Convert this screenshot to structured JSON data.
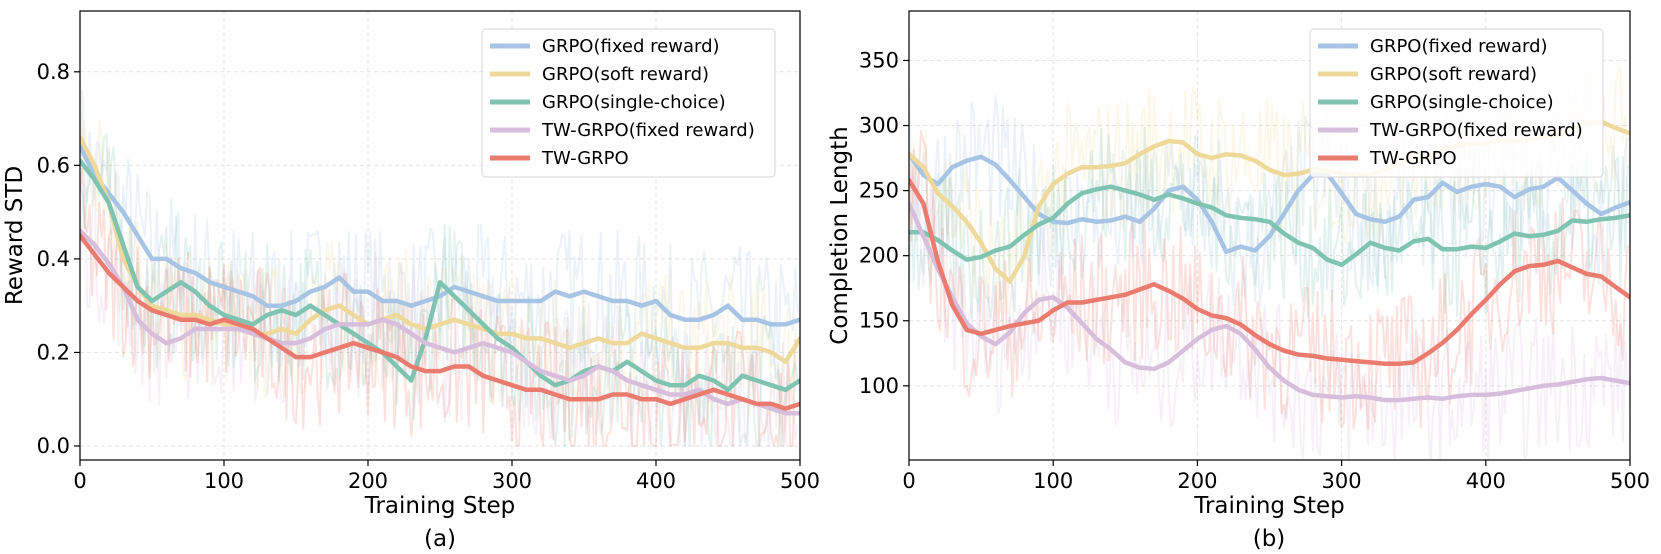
{
  "chart_data": [
    {
      "type": "line",
      "caption": "(a)",
      "xlabel": "Training Step",
      "ylabel": "Reward STD",
      "xlim": [
        0,
        500
      ],
      "ylim": [
        -0.03,
        0.93
      ],
      "xticks": [
        0,
        100,
        200,
        300,
        400,
        500
      ],
      "yticks": [
        0.0,
        0.2,
        0.4,
        0.6,
        0.8
      ],
      "grid": true,
      "legend_position": "top-right",
      "series": [
        {
          "name": "GRPO(fixed reward)",
          "color": "#A7C4E5",
          "x": [
            0,
            10,
            20,
            30,
            40,
            50,
            60,
            70,
            80,
            90,
            100,
            110,
            120,
            130,
            140,
            150,
            160,
            170,
            180,
            190,
            200,
            210,
            220,
            230,
            240,
            250,
            260,
            270,
            280,
            290,
            300,
            310,
            320,
            330,
            340,
            350,
            360,
            370,
            380,
            390,
            400,
            410,
            420,
            430,
            440,
            450,
            460,
            470,
            480,
            490,
            500
          ],
          "y": [
            0.64,
            0.58,
            0.54,
            0.5,
            0.45,
            0.4,
            0.4,
            0.38,
            0.37,
            0.35,
            0.34,
            0.33,
            0.32,
            0.3,
            0.3,
            0.31,
            0.33,
            0.34,
            0.36,
            0.33,
            0.33,
            0.31,
            0.31,
            0.3,
            0.31,
            0.32,
            0.34,
            0.33,
            0.32,
            0.31,
            0.31,
            0.31,
            0.31,
            0.33,
            0.32,
            0.33,
            0.32,
            0.31,
            0.31,
            0.3,
            0.31,
            0.28,
            0.27,
            0.27,
            0.28,
            0.3,
            0.27,
            0.27,
            0.26,
            0.26,
            0.27
          ]
        },
        {
          "name": "GRPO(soft reward)",
          "color": "#EFD99A",
          "x": [
            0,
            10,
            20,
            30,
            40,
            50,
            60,
            70,
            80,
            90,
            100,
            110,
            120,
            130,
            140,
            150,
            160,
            170,
            180,
            190,
            200,
            210,
            220,
            230,
            240,
            250,
            260,
            270,
            280,
            290,
            300,
            310,
            320,
            330,
            340,
            350,
            360,
            370,
            380,
            390,
            400,
            410,
            420,
            430,
            440,
            450,
            460,
            470,
            480,
            490,
            500
          ],
          "y": [
            0.66,
            0.6,
            0.52,
            0.4,
            0.34,
            0.3,
            0.29,
            0.28,
            0.28,
            0.27,
            0.26,
            0.26,
            0.24,
            0.24,
            0.25,
            0.24,
            0.27,
            0.29,
            0.3,
            0.28,
            0.26,
            0.27,
            0.28,
            0.26,
            0.25,
            0.26,
            0.27,
            0.26,
            0.25,
            0.24,
            0.24,
            0.23,
            0.23,
            0.22,
            0.21,
            0.22,
            0.23,
            0.22,
            0.22,
            0.24,
            0.23,
            0.22,
            0.21,
            0.21,
            0.22,
            0.22,
            0.21,
            0.21,
            0.2,
            0.18,
            0.23
          ]
        },
        {
          "name": "GRPO(single-choice)",
          "color": "#7FC3B1",
          "x": [
            0,
            10,
            20,
            30,
            40,
            50,
            60,
            70,
            80,
            90,
            100,
            110,
            120,
            130,
            140,
            150,
            160,
            170,
            180,
            190,
            200,
            210,
            220,
            230,
            240,
            250,
            260,
            270,
            280,
            290,
            300,
            310,
            320,
            330,
            340,
            350,
            360,
            370,
            380,
            390,
            400,
            410,
            420,
            430,
            440,
            450,
            460,
            470,
            480,
            490,
            500
          ],
          "y": [
            0.61,
            0.57,
            0.52,
            0.43,
            0.34,
            0.31,
            0.33,
            0.35,
            0.33,
            0.3,
            0.28,
            0.27,
            0.26,
            0.28,
            0.29,
            0.28,
            0.3,
            0.28,
            0.26,
            0.24,
            0.22,
            0.2,
            0.17,
            0.14,
            0.23,
            0.35,
            0.32,
            0.29,
            0.26,
            0.23,
            0.21,
            0.18,
            0.15,
            0.13,
            0.14,
            0.16,
            0.17,
            0.16,
            0.18,
            0.16,
            0.14,
            0.13,
            0.13,
            0.15,
            0.14,
            0.12,
            0.15,
            0.14,
            0.13,
            0.12,
            0.14
          ]
        },
        {
          "name": "TW-GRPO(fixed reward)",
          "color": "#D8BEDD",
          "x": [
            0,
            10,
            20,
            30,
            40,
            50,
            60,
            70,
            80,
            90,
            100,
            110,
            120,
            130,
            140,
            150,
            160,
            170,
            180,
            190,
            200,
            210,
            220,
            230,
            240,
            250,
            260,
            270,
            280,
            290,
            300,
            310,
            320,
            330,
            340,
            350,
            360,
            370,
            380,
            390,
            400,
            410,
            420,
            430,
            440,
            450,
            460,
            470,
            480,
            490,
            500
          ],
          "y": [
            0.46,
            0.43,
            0.39,
            0.34,
            0.27,
            0.24,
            0.22,
            0.23,
            0.25,
            0.25,
            0.25,
            0.25,
            0.24,
            0.23,
            0.22,
            0.22,
            0.23,
            0.25,
            0.26,
            0.26,
            0.26,
            0.27,
            0.26,
            0.24,
            0.22,
            0.21,
            0.2,
            0.21,
            0.22,
            0.21,
            0.2,
            0.18,
            0.16,
            0.15,
            0.14,
            0.15,
            0.17,
            0.16,
            0.14,
            0.13,
            0.12,
            0.11,
            0.11,
            0.12,
            0.1,
            0.09,
            0.1,
            0.09,
            0.08,
            0.07,
            0.07
          ]
        },
        {
          "name": "TW-GRPO",
          "color": "#EB7B6F",
          "x": [
            0,
            10,
            20,
            30,
            40,
            50,
            60,
            70,
            80,
            90,
            100,
            110,
            120,
            130,
            140,
            150,
            160,
            170,
            180,
            190,
            200,
            210,
            220,
            230,
            240,
            250,
            260,
            270,
            280,
            290,
            300,
            310,
            320,
            330,
            340,
            350,
            360,
            370,
            380,
            390,
            400,
            410,
            420,
            430,
            440,
            450,
            460,
            470,
            480,
            490,
            500
          ],
          "y": [
            0.45,
            0.41,
            0.37,
            0.34,
            0.31,
            0.29,
            0.28,
            0.27,
            0.27,
            0.26,
            0.27,
            0.26,
            0.25,
            0.23,
            0.21,
            0.19,
            0.19,
            0.2,
            0.21,
            0.22,
            0.21,
            0.2,
            0.19,
            0.17,
            0.16,
            0.16,
            0.17,
            0.17,
            0.15,
            0.14,
            0.13,
            0.12,
            0.12,
            0.11,
            0.1,
            0.1,
            0.1,
            0.11,
            0.11,
            0.1,
            0.1,
            0.09,
            0.1,
            0.11,
            0.12,
            0.11,
            0.1,
            0.09,
            0.09,
            0.08,
            0.09
          ]
        }
      ]
    },
    {
      "type": "line",
      "caption": "(b)",
      "xlabel": "Training Step",
      "ylabel": "Completion Length",
      "xlim": [
        0,
        500
      ],
      "ylim": [
        43,
        388
      ],
      "xticks": [
        0,
        100,
        200,
        300,
        400,
        500
      ],
      "yticks": [
        100,
        150,
        200,
        250,
        300,
        350
      ],
      "grid": true,
      "legend_position": "top-right",
      "series": [
        {
          "name": "GRPO(fixed reward)",
          "color": "#A7C4E5",
          "x": [
            0,
            10,
            20,
            30,
            40,
            50,
            60,
            70,
            80,
            90,
            100,
            110,
            120,
            130,
            140,
            150,
            160,
            170,
            180,
            190,
            200,
            210,
            220,
            230,
            240,
            250,
            260,
            270,
            280,
            290,
            300,
            310,
            320,
            330,
            340,
            350,
            360,
            370,
            380,
            390,
            400,
            410,
            420,
            430,
            440,
            450,
            460,
            470,
            480,
            490,
            500
          ],
          "y": [
            278,
            262,
            255,
            268,
            273,
            276,
            270,
            258,
            245,
            232,
            226,
            225,
            228,
            226,
            227,
            230,
            226,
            236,
            250,
            253,
            243,
            226,
            203,
            207,
            204,
            215,
            232,
            250,
            262,
            263,
            248,
            232,
            228,
            226,
            230,
            243,
            245,
            256,
            249,
            253,
            255,
            253,
            245,
            251,
            253,
            260,
            250,
            240,
            232,
            237,
            241
          ]
        },
        {
          "name": "GRPO(soft reward)",
          "color": "#EFD99A",
          "x": [
            0,
            10,
            20,
            30,
            40,
            50,
            60,
            70,
            80,
            90,
            100,
            110,
            120,
            130,
            140,
            150,
            160,
            170,
            180,
            190,
            200,
            210,
            220,
            230,
            240,
            250,
            260,
            270,
            280,
            290,
            300,
            310,
            320,
            330,
            340,
            350,
            360,
            370,
            380,
            390,
            400,
            410,
            420,
            430,
            440,
            450,
            460,
            470,
            480,
            490,
            500
          ],
          "y": [
            278,
            268,
            248,
            238,
            226,
            210,
            190,
            180,
            200,
            238,
            255,
            263,
            268,
            268,
            269,
            271,
            278,
            284,
            288,
            287,
            278,
            275,
            278,
            277,
            273,
            266,
            262,
            263,
            266,
            265,
            263,
            262,
            262,
            266,
            271,
            275,
            276,
            283,
            284,
            286,
            286,
            289,
            288,
            289,
            291,
            293,
            298,
            302,
            303,
            298,
            294
          ]
        },
        {
          "name": "GRPO(single-choice)",
          "color": "#7FC3B1",
          "x": [
            0,
            10,
            20,
            30,
            40,
            50,
            60,
            70,
            80,
            90,
            100,
            110,
            120,
            130,
            140,
            150,
            160,
            170,
            180,
            190,
            200,
            210,
            220,
            230,
            240,
            250,
            260,
            270,
            280,
            290,
            300,
            310,
            320,
            330,
            340,
            350,
            360,
            370,
            380,
            390,
            400,
            410,
            420,
            430,
            440,
            450,
            460,
            470,
            480,
            490,
            500
          ],
          "y": [
            218,
            218,
            212,
            204,
            197,
            199,
            204,
            207,
            216,
            224,
            229,
            240,
            248,
            251,
            253,
            250,
            247,
            243,
            247,
            244,
            240,
            237,
            231,
            229,
            228,
            226,
            217,
            210,
            206,
            197,
            193,
            201,
            210,
            206,
            204,
            211,
            213,
            205,
            205,
            207,
            206,
            211,
            217,
            215,
            216,
            219,
            227,
            226,
            228,
            229,
            231
          ]
        },
        {
          "name": "TW-GRPO(fixed reward)",
          "color": "#D8BEDD",
          "x": [
            0,
            10,
            20,
            30,
            40,
            50,
            60,
            70,
            80,
            90,
            100,
            110,
            120,
            130,
            140,
            150,
            160,
            170,
            180,
            190,
            200,
            210,
            220,
            230,
            240,
            250,
            260,
            270,
            280,
            290,
            300,
            310,
            320,
            330,
            340,
            350,
            360,
            370,
            380,
            390,
            400,
            410,
            420,
            430,
            440,
            450,
            460,
            470,
            480,
            490,
            500
          ],
          "y": [
            240,
            215,
            190,
            168,
            148,
            138,
            132,
            141,
            156,
            166,
            168,
            160,
            148,
            136,
            128,
            118,
            114,
            113,
            118,
            127,
            136,
            143,
            146,
            140,
            128,
            114,
            104,
            97,
            93,
            92,
            91,
            92,
            91,
            89,
            89,
            90,
            91,
            90,
            92,
            93,
            93,
            94,
            96,
            98,
            100,
            101,
            103,
            105,
            106,
            104,
            102
          ]
        },
        {
          "name": "TW-GRPO",
          "color": "#EB7B6F",
          "x": [
            0,
            10,
            20,
            30,
            40,
            50,
            60,
            70,
            80,
            90,
            100,
            110,
            120,
            130,
            140,
            150,
            160,
            170,
            180,
            190,
            200,
            210,
            220,
            230,
            240,
            250,
            260,
            270,
            280,
            290,
            300,
            310,
            320,
            330,
            340,
            350,
            360,
            370,
            380,
            390,
            400,
            410,
            420,
            430,
            440,
            450,
            460,
            470,
            480,
            490,
            500
          ],
          "y": [
            258,
            240,
            196,
            162,
            143,
            140,
            143,
            146,
            148,
            150,
            158,
            164,
            164,
            166,
            168,
            170,
            174,
            178,
            173,
            167,
            159,
            154,
            152,
            147,
            139,
            132,
            127,
            124,
            123,
            121,
            120,
            119,
            118,
            117,
            117,
            118,
            125,
            133,
            143,
            155,
            166,
            178,
            188,
            192,
            193,
            196,
            191,
            186,
            184,
            176,
            168
          ]
        }
      ]
    }
  ]
}
